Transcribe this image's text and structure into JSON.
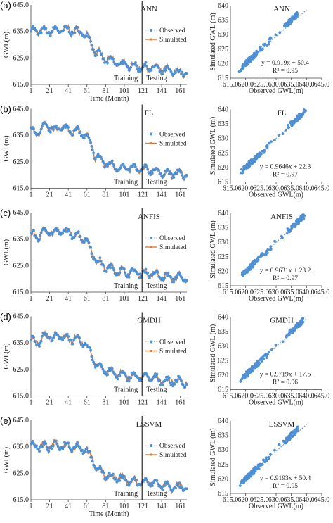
{
  "colors": {
    "observed": "#4f90d4",
    "simulated": "#e57a2c",
    "trend": "#5b8fd0",
    "axis": "#444444",
    "divider": "#000000"
  },
  "chart_data": [
    {
      "id": "a",
      "panel_label": "(a)",
      "type": "line",
      "model": "ANN",
      "xlabel": "Time (Month)",
      "ylabel": "GWL(m)",
      "x_ticks": [
        "1",
        "21",
        "41",
        "61",
        "81",
        "101",
        "121",
        "141",
        "161"
      ],
      "y_ticks": [
        "615.0",
        "625.0",
        "635.0",
        "645.0"
      ],
      "ylim": [
        615,
        645
      ],
      "xlim": [
        1,
        168
      ],
      "legend": [
        "Observed",
        "Simulated"
      ],
      "legend_position": "right",
      "split_month": 120,
      "training_label": "Training",
      "testing_label": "Testing",
      "observed_anchor": {
        "months": [
          1,
          10,
          20,
          30,
          40,
          50,
          60,
          65,
          70,
          80,
          90,
          100,
          110,
          120,
          130,
          140,
          150,
          160,
          168
        ],
        "gwl": [
          635.5,
          635,
          635,
          635.5,
          635.5,
          635,
          634,
          631,
          627.5,
          624.5,
          623.5,
          622.5,
          622,
          621.5,
          621.5,
          620.5,
          620,
          619.5,
          619.5
        ]
      },
      "scatter": {
        "xlabel": "Observed GWL(m)",
        "ylabel": "Simulated GWL (m)",
        "x_ticks": [
          "615.0",
          "620.0",
          "625.0",
          "630.0",
          "635.0",
          "640.0",
          "645.0"
        ],
        "y_ticks": [
          "615",
          "620",
          "625",
          "630",
          "635",
          "640"
        ],
        "xlim": [
          615,
          645
        ],
        "ylim": [
          615,
          640
        ],
        "equation": "y = 0.919x + 50.4",
        "r2": "R² = 0.95",
        "slope": 0.919,
        "intercept": 50.4
      }
    },
    {
      "id": "b",
      "panel_label": "(b)",
      "type": "line",
      "model": "FL",
      "xlabel": "",
      "ylabel": "GWL(m)",
      "x_ticks": [
        "1",
        "21",
        "41",
        "61",
        "81",
        "101",
        "121",
        "141",
        "161"
      ],
      "y_ticks": [
        "615.0",
        "625.0",
        "635.0",
        "645.0"
      ],
      "ylim": [
        615,
        645
      ],
      "xlim": [
        1,
        168
      ],
      "legend": [
        "Observed",
        "Simulated"
      ],
      "legend_position": "right",
      "split_month": 120,
      "training_label": "Training",
      "testing_label": "Testing",
      "observed_anchor": {
        "months": [
          1,
          10,
          15,
          20,
          25,
          30,
          40,
          50,
          60,
          65,
          70,
          80,
          90,
          100,
          110,
          120,
          130,
          140,
          150,
          160,
          168
        ],
        "gwl": [
          636.5,
          636,
          638,
          638.5,
          637,
          638,
          637.5,
          636.5,
          635,
          631,
          627.5,
          624.5,
          623.5,
          622.5,
          622.5,
          622,
          622,
          621,
          620.5,
          620.5,
          620
        ]
      },
      "scatter": {
        "xlabel": "Observed GWL(m)",
        "ylabel": "Simulated GWL (m)",
        "x_ticks": [
          "615.0",
          "620.0",
          "625.0",
          "630.0",
          "635.0",
          "640.0",
          "645.0"
        ],
        "y_ticks": [
          "615",
          "620",
          "625",
          "630",
          "635",
          "640"
        ],
        "xlim": [
          615,
          645
        ],
        "ylim": [
          615,
          640
        ],
        "equation": "y = 0.9646x + 22.3",
        "r2": "R² = 0.97",
        "slope": 0.9646,
        "intercept": 22.3
      }
    },
    {
      "id": "c",
      "panel_label": "(c)",
      "type": "line",
      "model": "ANFIS",
      "xlabel": "",
      "ylabel": "GWL(m)",
      "x_ticks": [
        "1",
        "21",
        "41",
        "61",
        "81",
        "101",
        "121",
        "141",
        "161"
      ],
      "y_ticks": [
        "615.0",
        "625.0",
        "635.0",
        "645.0"
      ],
      "ylim": [
        615,
        645
      ],
      "xlim": [
        1,
        168
      ],
      "legend": [
        "Observed",
        "Simulated"
      ],
      "legend_position": "right",
      "split_month": 120,
      "training_label": "Training",
      "testing_label": "Testing",
      "observed_anchor": {
        "months": [
          1,
          10,
          15,
          20,
          25,
          30,
          40,
          50,
          60,
          65,
          70,
          80,
          90,
          100,
          110,
          120,
          130,
          140,
          150,
          160,
          168
        ],
        "gwl": [
          636.5,
          636,
          638,
          638.5,
          637,
          638,
          637.5,
          636.5,
          635,
          631,
          627.5,
          624.5,
          623.5,
          622.5,
          622.5,
          622,
          622,
          621,
          620.5,
          620.5,
          620
        ]
      },
      "scatter": {
        "xlabel": "Observed GWL(m)",
        "ylabel": "Simulated GWL (m)",
        "x_ticks": [
          "615.0",
          "620.0",
          "625.0",
          "630.0",
          "635.0",
          "640.0",
          "645.0"
        ],
        "y_ticks": [
          "615",
          "620",
          "625",
          "630",
          "635",
          "640"
        ],
        "xlim": [
          615,
          645
        ],
        "ylim": [
          615,
          640
        ],
        "equation": "y = 0.9631x + 23.2",
        "r2": "R² = 0.97",
        "slope": 0.9631,
        "intercept": 23.2
      }
    },
    {
      "id": "d",
      "panel_label": "(d)",
      "type": "line",
      "model": "GMDH",
      "xlabel": "",
      "ylabel": "GWL(m)",
      "x_ticks": [
        "1",
        "21",
        "41",
        "61",
        "81",
        "101",
        "121",
        "141",
        "161"
      ],
      "y_ticks": [
        "615.0",
        "625.0",
        "635.0",
        "645.0"
      ],
      "ylim": [
        615,
        645
      ],
      "xlim": [
        1,
        168
      ],
      "legend": [
        "Observed",
        "Simulated"
      ],
      "legend_position": "right",
      "split_month": 120,
      "training_label": "Training",
      "testing_label": "Testing",
      "observed_anchor": {
        "months": [
          1,
          10,
          15,
          20,
          25,
          30,
          40,
          50,
          60,
          65,
          70,
          80,
          90,
          100,
          110,
          120,
          130,
          140,
          150,
          160,
          168
        ],
        "gwl": [
          636,
          635.5,
          637.5,
          638,
          636.5,
          637.5,
          637,
          636,
          634.5,
          631,
          627.5,
          624.5,
          623.5,
          622.5,
          622.5,
          622,
          622,
          621,
          620.5,
          620.5,
          620
        ]
      },
      "scatter": {
        "xlabel": "Observed GWL(m)",
        "ylabel": "Simulated GWL (m)",
        "x_ticks": [
          "615.0",
          "620.0",
          "625.0",
          "630.0",
          "635.0",
          "640.0",
          "645.0"
        ],
        "y_ticks": [
          "615",
          "620",
          "625",
          "630",
          "635",
          "640"
        ],
        "xlim": [
          615,
          645
        ],
        "ylim": [
          615,
          640
        ],
        "equation": "y = 0.9719x + 17.5",
        "r2": "R² = 0.96",
        "slope": 0.9719,
        "intercept": 17.5
      }
    },
    {
      "id": "e",
      "panel_label": "(e)",
      "type": "line",
      "model": "LSSVM",
      "xlabel": "Time (Month)",
      "ylabel": "GWL(m)",
      "x_ticks": [
        "1",
        "21",
        "41",
        "61",
        "81",
        "101",
        "121",
        "141",
        "161"
      ],
      "y_ticks": [
        "615.0",
        "625.0",
        "635.0",
        "645.0"
      ],
      "ylim": [
        615,
        645
      ],
      "xlim": [
        1,
        168
      ],
      "legend": [
        "Observed",
        "Simulated"
      ],
      "legend_position": "right",
      "split_month": 120,
      "training_label": "Training",
      "testing_label": "Testing",
      "observed_anchor": {
        "months": [
          1,
          10,
          20,
          30,
          40,
          50,
          60,
          65,
          70,
          80,
          90,
          100,
          110,
          120,
          130,
          140,
          150,
          160,
          168
        ],
        "gwl": [
          635.5,
          635,
          635,
          635.5,
          635.5,
          635,
          634,
          631,
          627.5,
          624.5,
          623.5,
          622.5,
          622,
          621.5,
          621.5,
          620.5,
          620,
          619.5,
          619.5
        ]
      },
      "scatter": {
        "xlabel": "Observed GWL(m)",
        "ylabel": "Simulated GWL (m)",
        "x_ticks": [
          "615.0",
          "620.0",
          "625.0",
          "630.0",
          "635.0",
          "640.0",
          "645.0"
        ],
        "y_ticks": [
          "615",
          "620",
          "625",
          "630",
          "635",
          "640"
        ],
        "xlim": [
          615,
          645
        ],
        "ylim": [
          615,
          640
        ],
        "equation": "y = 0.9193x + 50.4",
        "r2": "R² = 0.95",
        "slope": 0.9193,
        "intercept": 50.4
      }
    }
  ]
}
